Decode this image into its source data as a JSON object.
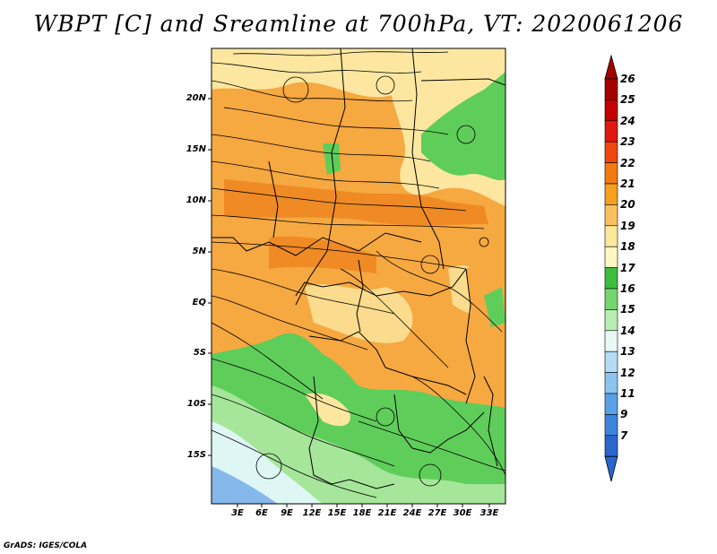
{
  "title": "WBPT [C] and Sreamline at 700hPa, VT: 2020061206",
  "credit": "GrADS: IGES/COLA",
  "lat_labels": [
    "20N",
    "15N",
    "10N",
    "5N",
    "EQ",
    "5S",
    "10S",
    "15S"
  ],
  "lon_labels": [
    "3E",
    "6E",
    "9E",
    "12E",
    "15E",
    "18E",
    "21E",
    "24E",
    "27E",
    "30E",
    "33E"
  ],
  "colorbar": {
    "labels": [
      "26",
      "25",
      "24",
      "23",
      "22",
      "21",
      "20",
      "19",
      "18",
      "17",
      "16",
      "15",
      "14",
      "13",
      "12",
      "11",
      "9",
      "7"
    ],
    "colors": [
      "#a50000",
      "#c40000",
      "#de1a10",
      "#f14510",
      "#f27a10",
      "#f6a020",
      "#f9c060",
      "#fde89a",
      "#fff6c4",
      "#3dbd3d",
      "#74d66e",
      "#b8eeb0",
      "#e8f8f4",
      "#b4dcf4",
      "#8cc4f0",
      "#5aa0e6",
      "#3c84dc",
      "#2a66cc"
    ]
  },
  "map": {
    "fields": {
      "orange": "#f6a841",
      "deep_orange": "#ef8a24",
      "light_yellow": "#fde7a0",
      "green": "#5fcd5a",
      "light_green": "#a6e69a",
      "pale_cyan": "#def7f4",
      "blue": "#86b8ec"
    }
  }
}
